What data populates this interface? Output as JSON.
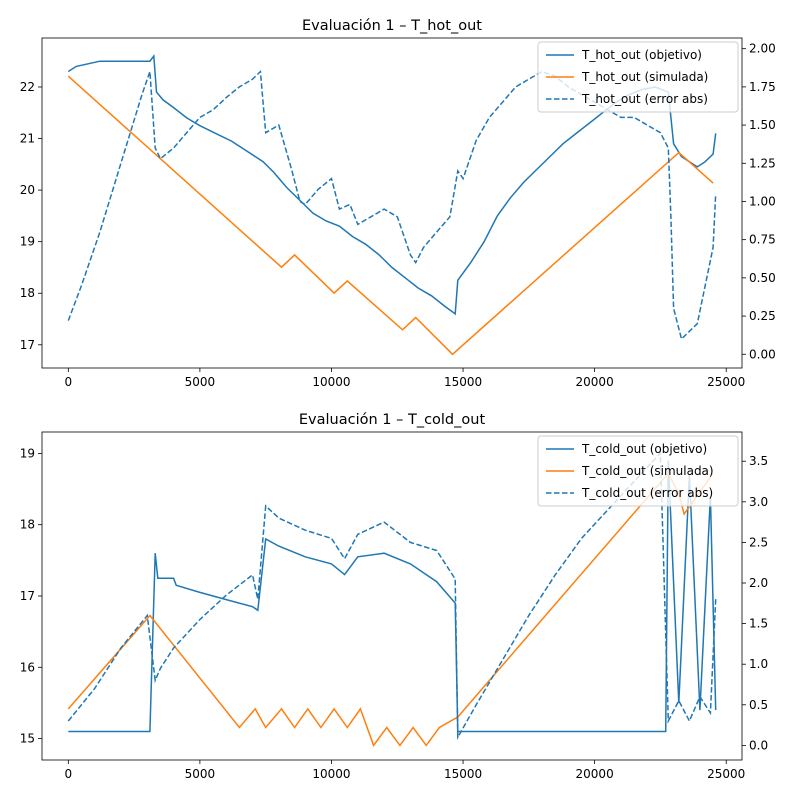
{
  "chart_data": [
    {
      "type": "line",
      "title": "Evaluación 1 – T_hot_out",
      "xlim": [
        -1000,
        25600
      ],
      "x_ticks": [
        0,
        5000,
        10000,
        15000,
        20000,
        25000
      ],
      "ylim_left": [
        16.55,
        22.95
      ],
      "y_ticks_left": [
        17,
        18,
        19,
        20,
        21,
        22
      ],
      "ylim_right": [
        -0.09,
        2.07
      ],
      "y_ticks_right": [
        0.0,
        0.25,
        0.5,
        0.75,
        1.0,
        1.25,
        1.5,
        1.75,
        2.0
      ],
      "legend_position": "upper right",
      "series": [
        {
          "name": "T_hot_out (objetivo)",
          "axis": "left",
          "style": "solid",
          "color": "#1f77b4",
          "x": [
            0,
            300,
            1200,
            3100,
            3250,
            3350,
            3600,
            4000,
            4500,
            5000,
            5600,
            6200,
            6800,
            7400,
            7800,
            8300,
            8800,
            9300,
            9800,
            10300,
            10800,
            11300,
            11800,
            12300,
            12800,
            13300,
            13800,
            14300,
            14700,
            14800,
            15300,
            15800,
            16300,
            16800,
            17300,
            17800,
            18300,
            18800,
            19300,
            19800,
            20300,
            20800,
            21300,
            21800,
            22300,
            22800,
            23000,
            23300,
            23600,
            23900,
            24200,
            24500,
            24600
          ],
          "y": [
            22.3,
            22.4,
            22.5,
            22.5,
            22.6,
            21.9,
            21.75,
            21.6,
            21.4,
            21.25,
            21.1,
            20.95,
            20.75,
            20.55,
            20.35,
            20.05,
            19.8,
            19.55,
            19.4,
            19.3,
            19.1,
            18.95,
            18.75,
            18.5,
            18.3,
            18.1,
            17.95,
            17.75,
            17.6,
            18.25,
            18.6,
            19.0,
            19.5,
            19.85,
            20.15,
            20.4,
            20.65,
            20.9,
            21.1,
            21.3,
            21.5,
            21.7,
            21.85,
            21.95,
            22.0,
            21.9,
            20.9,
            20.65,
            20.55,
            20.45,
            20.55,
            20.7,
            21.1
          ]
        },
        {
          "name": "T_hot_out (simulada)",
          "axis": "right",
          "style": "solid",
          "color": "#ff7f0e",
          "x": [
            0,
            8100,
            8600,
            10100,
            10600,
            12700,
            13200,
            14600,
            23200,
            24500
          ],
          "y": [
            1.82,
            0.57,
            0.65,
            0.4,
            0.48,
            0.16,
            0.24,
            0.0,
            1.32,
            1.12
          ]
        },
        {
          "name": "T_hot_out (error abs)",
          "axis": "right",
          "style": "dashed",
          "color": "#1f77b4",
          "x": [
            0,
            500,
            1200,
            2000,
            2800,
            3100,
            3300,
            3500,
            4000,
            4500,
            5000,
            5500,
            6000,
            6500,
            7000,
            7300,
            7500,
            8000,
            8500,
            8800,
            9000,
            9500,
            10000,
            10300,
            10700,
            11000,
            11500,
            12000,
            12500,
            13000,
            13200,
            13500,
            14000,
            14500,
            14800,
            15000,
            15500,
            16000,
            16500,
            17000,
            17500,
            18000,
            18500,
            19000,
            19500,
            20000,
            20500,
            21000,
            21500,
            22000,
            22500,
            22800,
            22900,
            23000,
            23300,
            23600,
            23900,
            24200,
            24500,
            24600
          ],
          "y": [
            0.22,
            0.45,
            0.8,
            1.25,
            1.7,
            1.85,
            1.35,
            1.28,
            1.35,
            1.45,
            1.55,
            1.6,
            1.68,
            1.75,
            1.8,
            1.85,
            1.45,
            1.5,
            1.2,
            1.0,
            0.98,
            1.08,
            1.15,
            0.95,
            0.98,
            0.85,
            0.9,
            0.95,
            0.9,
            0.65,
            0.6,
            0.7,
            0.8,
            0.9,
            1.2,
            1.15,
            1.4,
            1.55,
            1.65,
            1.75,
            1.8,
            1.85,
            1.82,
            1.75,
            1.7,
            1.65,
            1.6,
            1.55,
            1.55,
            1.5,
            1.45,
            1.35,
            0.9,
            0.3,
            0.1,
            0.15,
            0.2,
            0.45,
            0.7,
            1.05
          ]
        }
      ]
    },
    {
      "type": "line",
      "title": "Evaluación 1 – T_cold_out",
      "xlim": [
        -1000,
        25600
      ],
      "x_ticks": [
        0,
        5000,
        10000,
        15000,
        20000,
        25000
      ],
      "ylim_left": [
        14.7,
        19.3
      ],
      "y_ticks_left": [
        15,
        16,
        17,
        18,
        19
      ],
      "ylim_right": [
        -0.18,
        3.86
      ],
      "y_ticks_right": [
        0.0,
        0.5,
        1.0,
        1.5,
        2.0,
        2.5,
        3.0,
        3.5
      ],
      "legend_position": "upper right",
      "series": [
        {
          "name": "T_cold_out (objetivo)",
          "axis": "left",
          "style": "solid",
          "color": "#1f77b4",
          "x": [
            0,
            3100,
            3300,
            3400,
            4000,
            4100,
            5000,
            6000,
            7000,
            7200,
            7500,
            8000,
            9000,
            10000,
            10500,
            11000,
            12000,
            13000,
            14000,
            14700,
            14800,
            22700,
            22800,
            23200,
            23600,
            24000,
            24400,
            24600
          ],
          "y": [
            15.1,
            15.1,
            17.6,
            17.25,
            17.25,
            17.15,
            17.05,
            16.95,
            16.85,
            16.8,
            17.8,
            17.7,
            17.55,
            17.45,
            17.3,
            17.55,
            17.6,
            17.45,
            17.2,
            16.9,
            15.1,
            15.1,
            18.9,
            15.5,
            18.7,
            15.4,
            18.4,
            15.4
          ]
        },
        {
          "name": "T_cold_out (simulada)",
          "axis": "right",
          "style": "solid",
          "color": "#ff7f0e",
          "x": [
            0,
            3100,
            6500,
            7100,
            7500,
            8100,
            8600,
            9100,
            9600,
            10100,
            10600,
            11100,
            11600,
            12100,
            12600,
            13100,
            13600,
            14100,
            14800,
            22800,
            23200,
            23400,
            24500
          ],
          "y": [
            0.45,
            1.6,
            0.22,
            0.45,
            0.22,
            0.45,
            0.22,
            0.45,
            0.22,
            0.45,
            0.22,
            0.45,
            0.0,
            0.22,
            0.0,
            0.22,
            0.0,
            0.22,
            0.35,
            3.35,
            3.1,
            2.85,
            3.35
          ]
        },
        {
          "name": "T_cold_out (error abs)",
          "axis": "right",
          "style": "dashed",
          "color": "#1f77b4",
          "x": [
            0,
            1000,
            2000,
            3000,
            3300,
            3500,
            4000,
            5000,
            6000,
            7000,
            7200,
            7500,
            8000,
            9000,
            10000,
            10500,
            11000,
            12000,
            13000,
            14000,
            14700,
            14800,
            15500,
            16500,
            17500,
            18500,
            19500,
            20500,
            21500,
            22500,
            22800,
            23200,
            23600,
            24000,
            24400,
            24600
          ],
          "y": [
            0.3,
            0.7,
            1.2,
            1.6,
            0.8,
            0.95,
            1.2,
            1.55,
            1.85,
            2.1,
            1.8,
            2.95,
            2.8,
            2.65,
            2.55,
            2.3,
            2.6,
            2.75,
            2.5,
            2.4,
            2.05,
            0.1,
            0.5,
            1.05,
            1.6,
            2.1,
            2.55,
            2.9,
            3.25,
            3.6,
            0.3,
            0.55,
            0.3,
            0.6,
            0.4,
            1.8
          ]
        }
      ]
    }
  ]
}
